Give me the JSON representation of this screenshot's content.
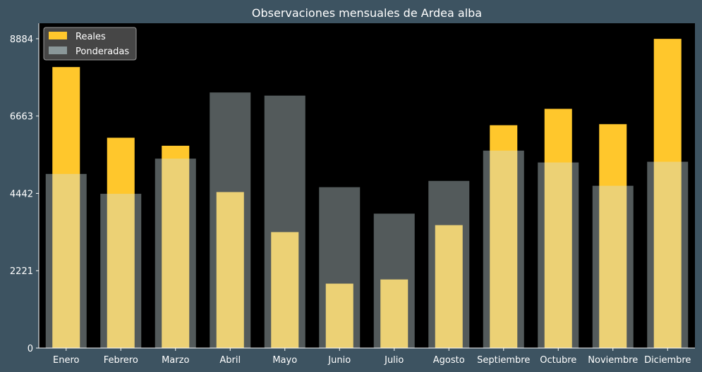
{
  "chart_data": {
    "type": "bar",
    "title": "Observaciones mensuales de Ardea alba",
    "xlabel": "",
    "ylabel": "",
    "categories": [
      "Enero",
      "Febrero",
      "Marzo",
      "Abril",
      "Mayo",
      "Junio",
      "Julio",
      "Agosto",
      "Septiembre",
      "Octubre",
      "Noviembre",
      "Diciembre"
    ],
    "yticks": [
      0,
      2221,
      4442,
      6663,
      8884
    ],
    "ylim": [
      0,
      9328
    ],
    "series": [
      {
        "name": "Reales",
        "color": "#ffc72c",
        "values": [
          8070,
          6040,
          5810,
          4480,
          3330,
          1850,
          1970,
          3530,
          6400,
          6870,
          6430,
          8880
        ]
      },
      {
        "name": "Ponderadas",
        "color": "#cfe0e3",
        "values": [
          5000,
          4430,
          5440,
          7340,
          7250,
          4620,
          3860,
          4800,
          5670,
          5330,
          4660,
          5350
        ]
      }
    ],
    "grid": false,
    "legend_position": "top-left",
    "background": "#000000",
    "figure_background": "#3d5361"
  }
}
